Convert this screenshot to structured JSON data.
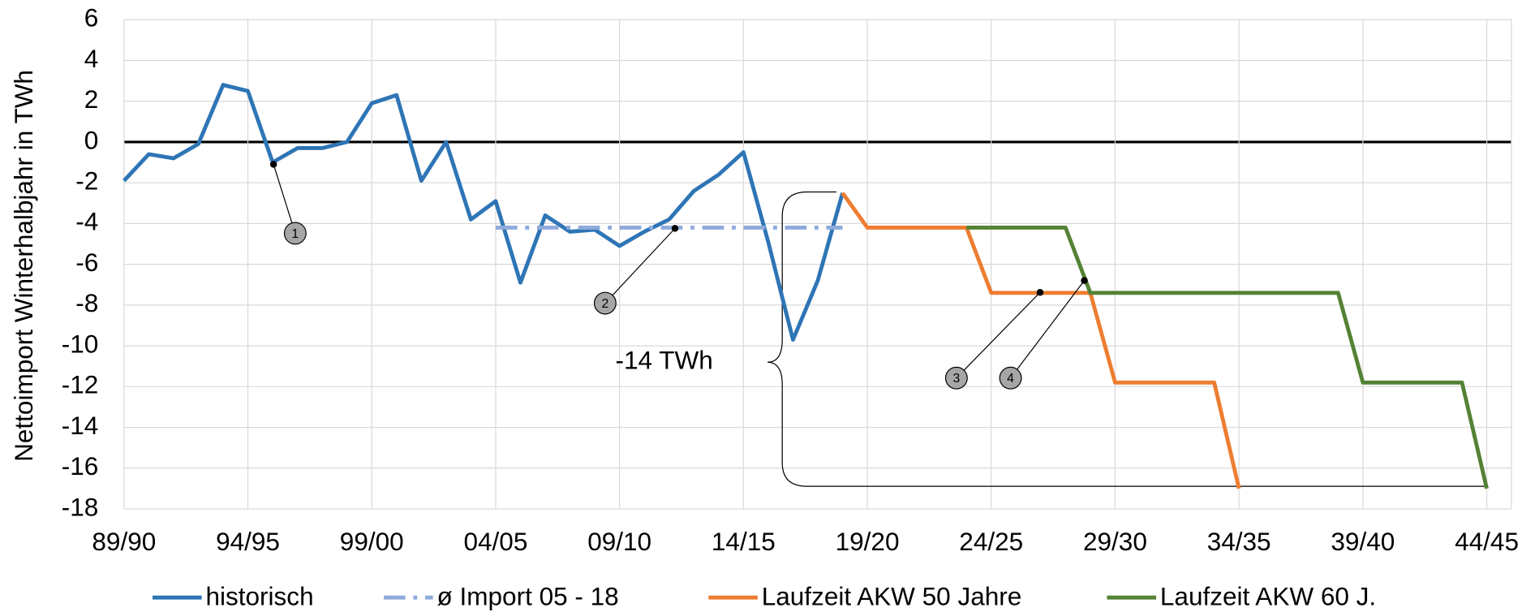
{
  "chart_data": {
    "type": "line",
    "y_label": "Nettoimport Winterhalbjahr in TWh",
    "categories": [
      "89/90",
      null,
      null,
      null,
      null,
      "94/95",
      null,
      null,
      null,
      null,
      "99/00",
      null,
      null,
      null,
      null,
      "04/05",
      null,
      null,
      null,
      null,
      "09/10",
      null,
      null,
      null,
      null,
      "14/15",
      null,
      null,
      null,
      null,
      "19/20",
      null,
      null,
      null,
      null,
      "24/25",
      null,
      null,
      null,
      null,
      "29/30",
      null,
      null,
      null,
      null,
      "34/35",
      null,
      null,
      null,
      null,
      "39/40",
      null,
      null,
      null,
      null,
      "44/45"
    ],
    "series": [
      {
        "name": "historisch",
        "color": "#2e75b6",
        "dash": "solid",
        "values": [
          -1.9,
          -0.6,
          -0.8,
          -0.1,
          2.8,
          2.5,
          -1.0,
          -0.3,
          -0.3,
          0,
          1.9,
          2.3,
          -1.9,
          0,
          -3.8,
          -2.9,
          -6.9,
          -3.6,
          -4.4,
          -4.3,
          -5.1,
          -4.4,
          -3.8,
          -2.4,
          -1.6,
          -0.5,
          -4.9,
          -9.7,
          -6.8,
          -2.5,
          null,
          null,
          null,
          null,
          null,
          null,
          null,
          null,
          null,
          null,
          null,
          null,
          null,
          null,
          null,
          null,
          null,
          null,
          null,
          null,
          null,
          null,
          null,
          null,
          null,
          null
        ]
      },
      {
        "name": "ø Import 05 - 18",
        "color": "#8faadc",
        "dash": "dashdot",
        "values": [
          null,
          null,
          null,
          null,
          null,
          null,
          null,
          null,
          null,
          null,
          null,
          null,
          null,
          null,
          null,
          -4.2,
          -4.2,
          -4.2,
          -4.2,
          -4.2,
          -4.2,
          -4.2,
          -4.2,
          -4.2,
          -4.2,
          -4.2,
          -4.2,
          -4.2,
          -4.2,
          -4.2,
          null,
          null,
          null,
          null,
          null,
          null,
          null,
          null,
          null,
          null,
          null,
          null,
          null,
          null,
          null,
          null,
          null,
          null,
          null,
          null,
          null,
          null,
          null,
          null,
          null,
          null
        ]
      },
      {
        "name": "Laufzeit AKW 50 Jahre",
        "color": "#ed7d31",
        "dash": "solid",
        "values": [
          null,
          null,
          null,
          null,
          null,
          null,
          null,
          null,
          null,
          null,
          null,
          null,
          null,
          null,
          null,
          null,
          null,
          null,
          null,
          null,
          null,
          null,
          null,
          null,
          null,
          null,
          null,
          null,
          null,
          -2.5,
          -4.2,
          -4.2,
          -4.2,
          -4.2,
          -4.2,
          -7.4,
          -7.4,
          -7.4,
          -7.4,
          -7.4,
          -11.8,
          -11.8,
          -11.8,
          -11.8,
          -11.8,
          -17,
          null,
          null,
          null,
          null,
          null,
          null,
          null,
          null,
          null,
          null
        ]
      },
      {
        "name": "Laufzeit AKW 60 J.",
        "color": "#548235",
        "dash": "solid",
        "values": [
          null,
          null,
          null,
          null,
          null,
          null,
          null,
          null,
          null,
          null,
          null,
          null,
          null,
          null,
          null,
          null,
          null,
          null,
          null,
          null,
          null,
          null,
          null,
          null,
          null,
          null,
          null,
          null,
          null,
          null,
          null,
          null,
          null,
          null,
          -4.2,
          -4.2,
          -4.2,
          -4.2,
          -4.2,
          -7.4,
          -7.4,
          -7.4,
          -7.4,
          -7.4,
          -7.4,
          -7.4,
          -7.4,
          -7.4,
          -7.4,
          -7.4,
          -11.8,
          -11.8,
          -11.8,
          -11.8,
          -11.8,
          -17
        ]
      }
    ],
    "ylim": [
      -18,
      6
    ],
    "yticks": [
      -18,
      -16,
      -14,
      -12,
      -10,
      -8,
      -6,
      -4,
      -2,
      0,
      2,
      4,
      6
    ],
    "grid": true,
    "legend": "bottom",
    "annotations": [
      "-14 TWh",
      "1",
      "2",
      "3",
      "4"
    ]
  }
}
